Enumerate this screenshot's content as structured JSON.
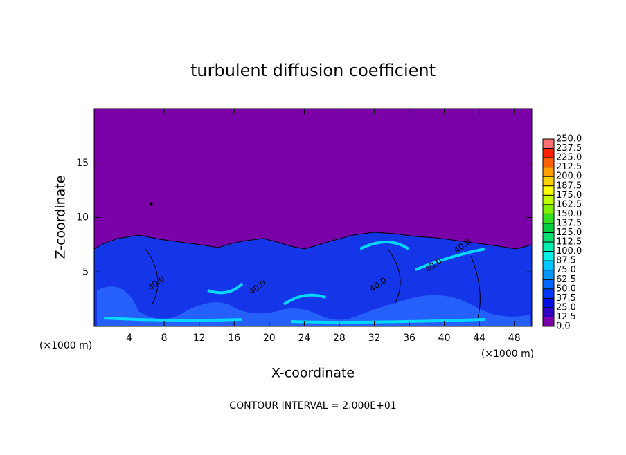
{
  "chart_data": {
    "type": "contour",
    "title": "turbulent diffusion coefficient",
    "xlabel": "X-coordinate",
    "ylabel": "Z-coordinate",
    "x_unit_label": "(×1000 m)",
    "footer": "CONTOUR INTERVAL = 2.000E+01",
    "xlim": [
      0,
      50
    ],
    "ylim": [
      0,
      20
    ],
    "xticks": [
      4,
      8,
      12,
      16,
      20,
      24,
      28,
      32,
      36,
      40,
      44,
      48
    ],
    "yticks": [
      5,
      10,
      15
    ],
    "annotations": [
      "40.0",
      "40.0",
      "40.0",
      "40.0",
      "40.0"
    ],
    "colorbar": {
      "levels": [
        {
          "value": 0,
          "label": "0.0"
        },
        12.5,
        {
          "value": 25,
          "label": "25.0"
        },
        37.5,
        {
          "value": 50,
          "label": "50.0"
        },
        62.5,
        {
          "value": 75,
          "label": "75.0"
        },
        87.5,
        {
          "value": 100,
          "label": "100.0"
        },
        112.5,
        {
          "value": 125,
          "label": "125.0"
        },
        137.5,
        {
          "value": 150,
          "label": "150.0"
        },
        162.5,
        {
          "value": 175,
          "label": "175.0"
        },
        187.5,
        {
          "value": 200,
          "label": "200.0"
        },
        212.5,
        {
          "value": 225,
          "label": "225.0"
        },
        237.5,
        {
          "value": 250,
          "label": "250.0"
        }
      ],
      "colors": [
        "#7a00a8",
        "#3000c0",
        "#0010e0",
        "#0038ff",
        "#0068ff",
        "#0098ff",
        "#00c8ff",
        "#00f0e8",
        "#00f0b0",
        "#00e070",
        "#00d040",
        "#30e020",
        "#80f000",
        "#c0ff00",
        "#ffff00",
        "#ffd000",
        "#ffa000",
        "#ff6000",
        "#ff2000",
        "#ff7070"
      ]
    }
  }
}
